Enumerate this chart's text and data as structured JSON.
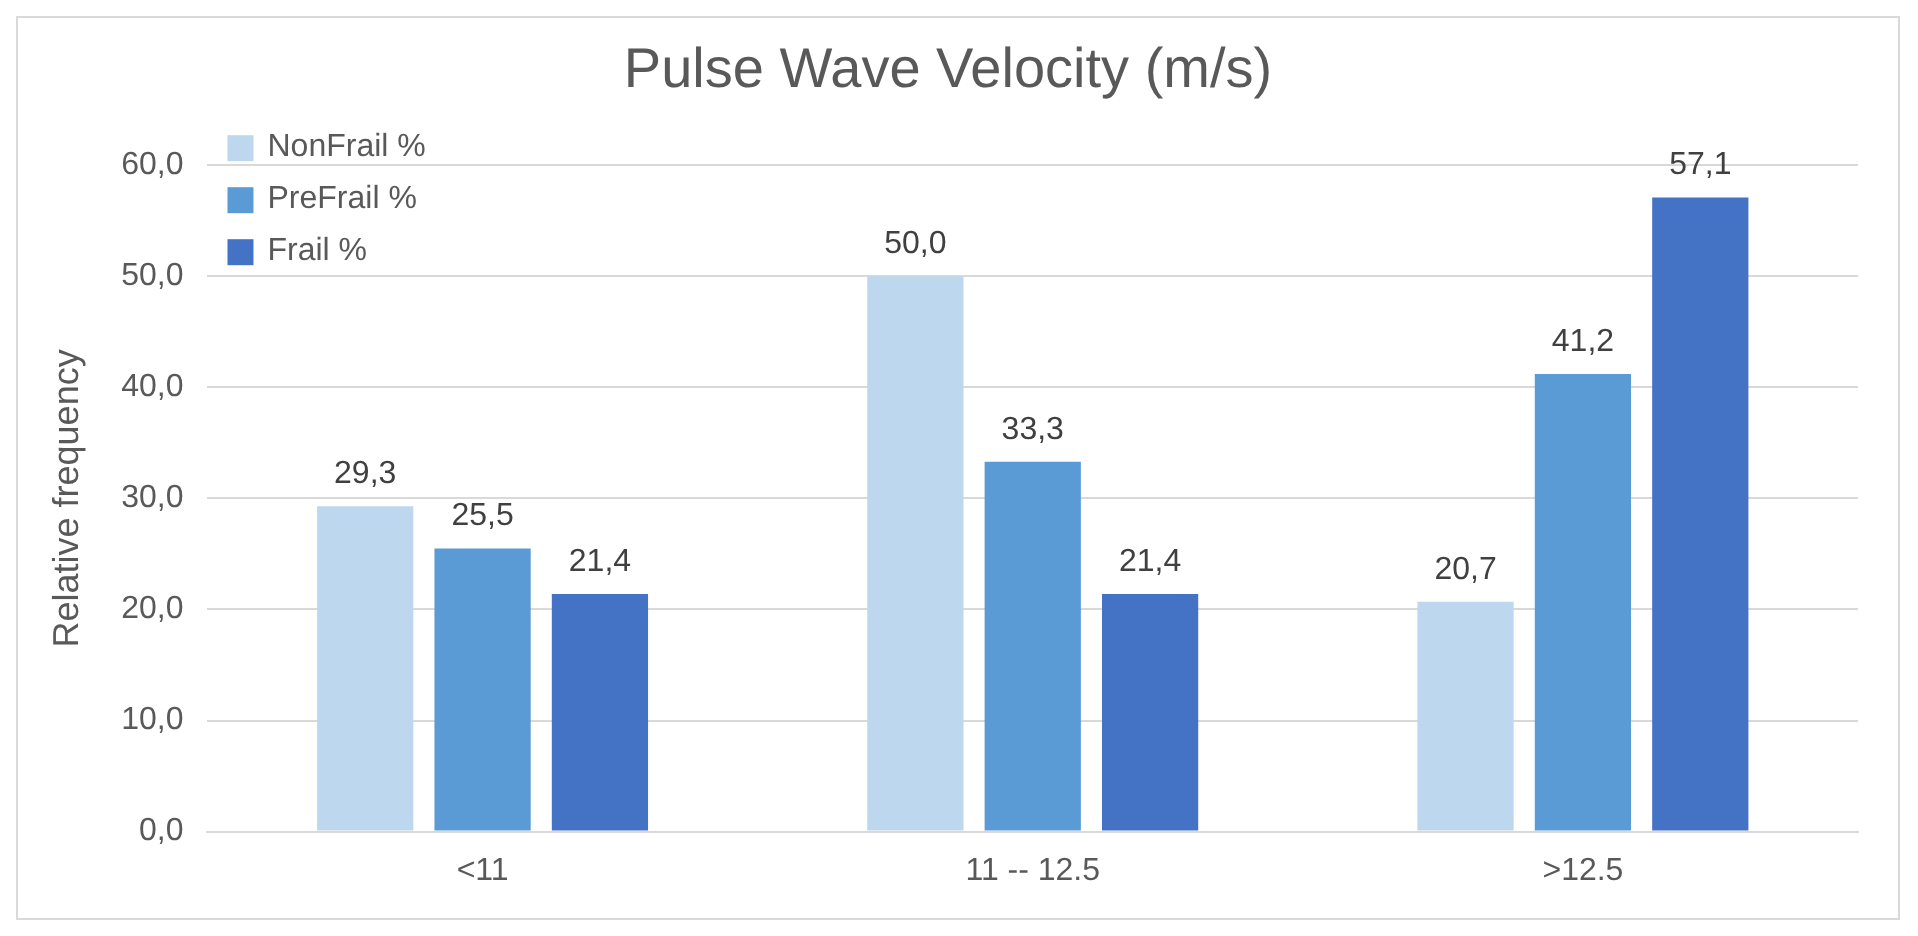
{
  "chart_data": {
    "type": "bar",
    "title": "Pulse Wave Velocity (m/s)",
    "ylabel": "Relative frequency",
    "categories": [
      "<11",
      "11 -- 12.5",
      ">12.5"
    ],
    "series": [
      {
        "name": "NonFrail %",
        "color": "#bdd7ee",
        "values": [
          29.3,
          50.0,
          20.7
        ],
        "value_labels": [
          "29,3",
          "50,0",
          "20,7"
        ]
      },
      {
        "name": "PreFrail %",
        "color": "#5b9bd5",
        "values": [
          25.5,
          33.3,
          41.2
        ],
        "value_labels": [
          "25,5",
          "33,3",
          "41,2"
        ]
      },
      {
        "name": "Frail %",
        "color": "#4472c4",
        "values": [
          21.4,
          21.4,
          57.1
        ],
        "value_labels": [
          "21,4",
          "21,4",
          "57,1"
        ]
      }
    ],
    "ylim": [
      0,
      60
    ],
    "yticks": [
      {
        "value": 0,
        "label": "0,0"
      },
      {
        "value": 10,
        "label": "10,0"
      },
      {
        "value": 20,
        "label": "20,0"
      },
      {
        "value": 30,
        "label": "30,0"
      },
      {
        "value": 40,
        "label": "40,0"
      },
      {
        "value": 50,
        "label": "50,0"
      },
      {
        "value": 60,
        "label": "60,0"
      }
    ],
    "grid": "y",
    "legend": "top left"
  }
}
